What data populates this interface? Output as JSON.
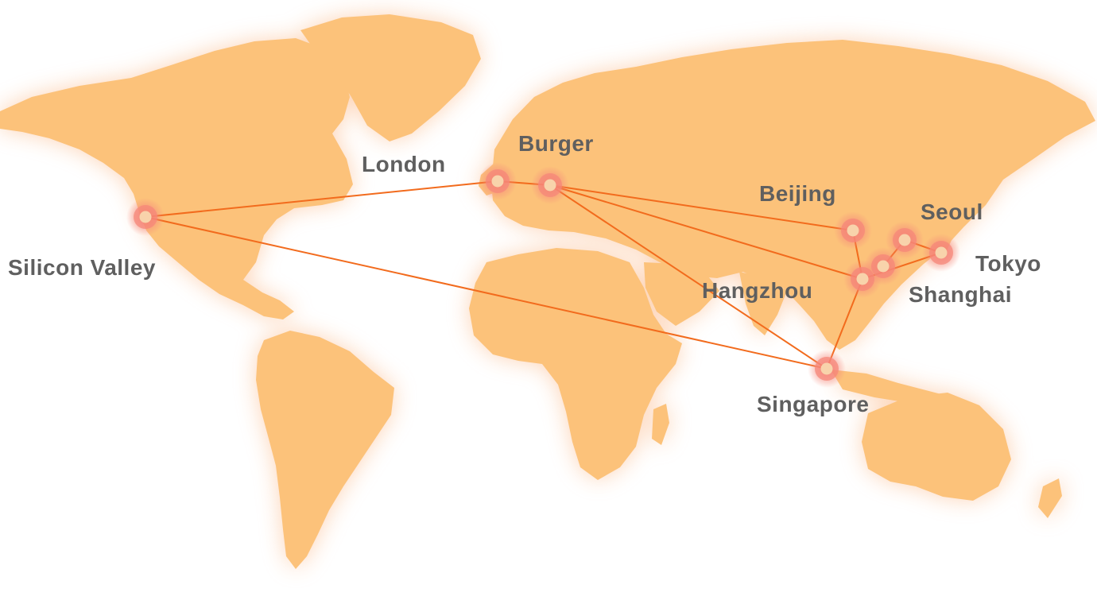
{
  "colors": {
    "land": "#fcc27a",
    "land_glow": "#fbb07a",
    "route": "#f26b1d",
    "marker_halo": "#f5877a",
    "marker_core": "#f8d3ab",
    "label": "#5f5f5f"
  },
  "cities": [
    {
      "id": "silicon-valley",
      "label": "Silicon Valley"
    },
    {
      "id": "london",
      "label": "London"
    },
    {
      "id": "burger",
      "label": "Burger"
    },
    {
      "id": "beijing",
      "label": "Beijing"
    },
    {
      "id": "seoul",
      "label": "Seoul"
    },
    {
      "id": "tokyo",
      "label": "Tokyo"
    },
    {
      "id": "shanghai",
      "label": "Shanghai"
    },
    {
      "id": "hangzhou",
      "label": "Hangzhou"
    },
    {
      "id": "singapore",
      "label": "Singapore"
    }
  ],
  "routes": [
    [
      "silicon-valley",
      "london"
    ],
    [
      "silicon-valley",
      "singapore"
    ],
    [
      "london",
      "burger"
    ],
    [
      "burger",
      "beijing"
    ],
    [
      "burger",
      "hangzhou"
    ],
    [
      "burger",
      "singapore"
    ],
    [
      "beijing",
      "hangzhou"
    ],
    [
      "hangzhou",
      "singapore"
    ],
    [
      "hangzhou",
      "tokyo"
    ],
    [
      "seoul",
      "tokyo"
    ],
    [
      "seoul",
      "shanghai"
    ]
  ]
}
